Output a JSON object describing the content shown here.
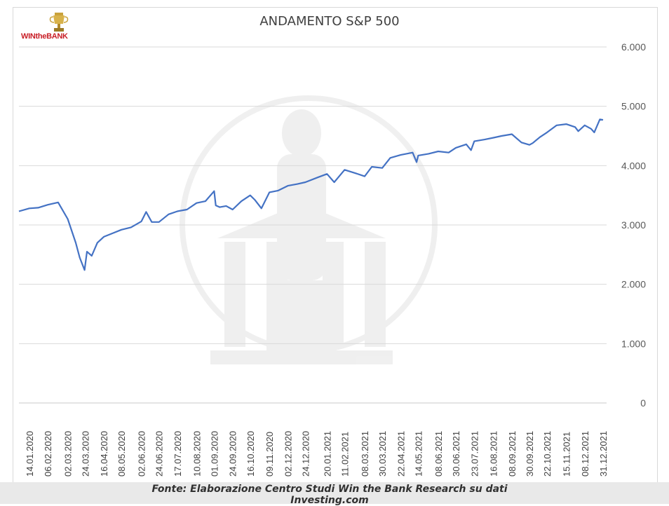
{
  "logo": {
    "text": "WINtheBANK",
    "accent": "#c81d25",
    "icon": "trophy-icon"
  },
  "chart_data": {
    "type": "line",
    "title": "ANDAMENTO S&P 500",
    "xlabel": "",
    "ylabel": "",
    "ylim": [
      0,
      6000
    ],
    "yticks": [
      0,
      1000,
      2000,
      3000,
      4000,
      5000,
      6000
    ],
    "ytick_labels": [
      "0",
      "1.000",
      "2.000",
      "3.000",
      "4.000",
      "5.000",
      "6.000"
    ],
    "x_tick_labels": [
      "14.01.2020",
      "06.02.2020",
      "02.03.2020",
      "24.03.2020",
      "16.04.2020",
      "08.05.2020",
      "02.06.2020",
      "24.06.2020",
      "17.07.2020",
      "10.08.2020",
      "01.09.2020",
      "24.09.2020",
      "16.10.2020",
      "09.11.2020",
      "02.12.2020",
      "24.12.2020",
      "20.01.2021",
      "11.02.2021",
      "08.03.2021",
      "30.03.2021",
      "22.04.2021",
      "14.05.2021",
      "08.06.2021",
      "30.06.2021",
      "23.07.2021",
      "16.08.2021",
      "08.09.2021",
      "30.09.2021",
      "22.10.2021",
      "15.11.2021",
      "08.12.2021",
      "31.12.2021"
    ],
    "grid": true,
    "legend": "none",
    "line_color": "#4472c4",
    "series": [
      {
        "x": [
          "01.01.2020",
          "14.01.2020",
          "25.01.2020",
          "06.02.2020",
          "19.02.2020",
          "02.03.2020",
          "12.03.2020",
          "17.03.2020",
          "23.03.2020",
          "26.03.2020",
          "01.04.2020",
          "08.04.2020",
          "16.04.2020",
          "27.04.2020",
          "08.05.2020",
          "20.05.2020",
          "02.06.2020",
          "08.06.2020",
          "15.06.2020",
          "24.06.2020",
          "06.07.2020",
          "17.07.2020",
          "29.07.2020",
          "10.08.2020",
          "21.08.2020",
          "01.09.2020",
          "03.09.2020",
          "08.09.2020",
          "16.09.2020",
          "24.09.2020",
          "05.10.2020",
          "16.10.2020",
          "22.10.2020",
          "30.10.2020",
          "09.11.2020",
          "20.11.2020",
          "02.12.2020",
          "14.12.2020",
          "24.12.2020",
          "08.01.2021",
          "20.01.2021",
          "29.01.2021",
          "11.02.2021",
          "25.02.2021",
          "08.03.2021",
          "17.03.2021",
          "30.03.2021",
          "09.04.2021",
          "22.04.2021",
          "07.05.2021",
          "12.05.2021",
          "14.05.2021",
          "27.05.2021",
          "08.06.2021",
          "21.06.2021",
          "30.06.2021",
          "13.07.2021",
          "19.07.2021",
          "23.07.2021",
          "05.08.2021",
          "16.08.2021",
          "26.08.2021",
          "08.09.2021",
          "20.09.2021",
          "30.09.2021",
          "04.10.2021",
          "13.10.2021",
          "22.10.2021",
          "03.11.2021",
          "15.11.2021",
          "26.11.2021",
          "30.11.2021",
          "08.12.2021",
          "16.12.2021",
          "20.12.2021",
          "27.12.2021",
          "31.12.2021"
        ],
        "values": [
          3230,
          3280,
          3290,
          3340,
          3380,
          3100,
          2700,
          2450,
          2240,
          2550,
          2480,
          2700,
          2800,
          2860,
          2920,
          2960,
          3060,
          3220,
          3050,
          3050,
          3180,
          3230,
          3260,
          3370,
          3400,
          3570,
          3330,
          3300,
          3320,
          3260,
          3400,
          3500,
          3420,
          3280,
          3550,
          3580,
          3660,
          3690,
          3720,
          3800,
          3860,
          3720,
          3930,
          3870,
          3820,
          3980,
          3960,
          4130,
          4180,
          4220,
          4060,
          4170,
          4200,
          4240,
          4220,
          4300,
          4360,
          4260,
          4410,
          4440,
          4470,
          4500,
          4530,
          4390,
          4350,
          4380,
          4480,
          4560,
          4680,
          4700,
          4650,
          4580,
          4680,
          4620,
          4560,
          4780,
          4770
        ]
      }
    ]
  },
  "source": "Fonte: Elaborazione Centro Studi Win the Bank Research su dati Investing.com"
}
